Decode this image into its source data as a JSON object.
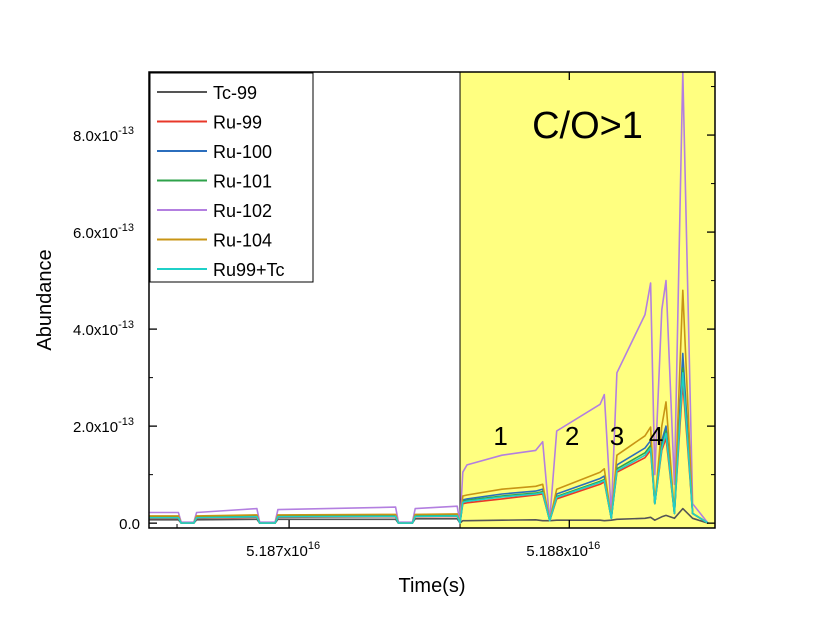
{
  "chart_data": {
    "type": "line",
    "xlabel": "Time(s)",
    "ylabel": "Abundance",
    "xlim": [
      51865000000000000,
      51885200000000000
    ],
    "ylim": [
      -1e-14,
      9.3e-13
    ],
    "x_ticks": [
      {
        "value": 51870000000000000,
        "mant": "5.187x10",
        "exp": "16"
      },
      {
        "value": 51880000000000000,
        "mant": "5.188x10",
        "exp": "16"
      }
    ],
    "y_ticks": [
      {
        "value": 0,
        "mant": "0.0",
        "exp": ""
      },
      {
        "value": 2e-13,
        "mant": "2.0x10",
        "exp": "-13"
      },
      {
        "value": 4e-13,
        "mant": "4.0x10",
        "exp": "-13"
      },
      {
        "value": 6e-13,
        "mant": "6.0x10",
        "exp": "-13"
      },
      {
        "value": 8e-13,
        "mant": "8.0x10",
        "exp": "-13"
      }
    ],
    "shaded_region": {
      "x_start": 51876100000000000,
      "x_end": 51885200000000000,
      "label": "C/O>1",
      "color": "#ffff80"
    },
    "annotations": [
      {
        "text": "1",
        "x": 51877550000000000,
        "y": 1.8e-13
      },
      {
        "text": "2",
        "x": 51880100000000000,
        "y": 1.8e-13
      },
      {
        "text": "3",
        "x": 51881700000000000,
        "y": 1.8e-13
      },
      {
        "text": "4",
        "x": 51883100000000000,
        "y": 1.8e-13
      }
    ],
    "legend_position": "top-left",
    "x_points": [
      51865000000000000,
      51866050000000000,
      51866150000000000,
      51866600000000000,
      51866700000000000,
      51868850000000000,
      51868950000000000,
      51869500000000000,
      51869600000000000,
      51873800000000000,
      51873900000000000,
      51874400000000000,
      51874500000000000,
      51876000000000000,
      51876100000000000,
      51876200000000000,
      51876350000000000,
      51877600000000000,
      51878800000000000,
      51879050000000000,
      51879300000000000,
      51879550000000000,
      51881100000000000,
      51881250000000000,
      51881500000000000,
      51881700000000000,
      51882700000000000,
      51882900000000000,
      51883050000000000,
      51883300000000000,
      51883450000000000,
      51883750000000000,
      51884050000000000,
      51884400000000000,
      51884950000000000
    ],
    "series": [
      {
        "name": "Tc-99",
        "color": "#555555",
        "values": [
          7e-15,
          7e-15,
          0,
          0,
          7e-15,
          8e-15,
          0,
          0,
          8e-15,
          8e-15,
          0,
          0,
          9e-15,
          9e-15,
          0,
          5e-15,
          5e-15,
          6e-15,
          7e-15,
          5e-15,
          5e-15,
          6e-15,
          6e-15,
          5e-15,
          6e-15,
          8e-15,
          1e-14,
          1.2e-14,
          6e-15,
          1.3e-14,
          1.6e-14,
          1e-14,
          3e-14,
          1e-14,
          0
        ]
      },
      {
        "name": "Ru-99",
        "color": "#e8382a",
        "values": [
          1e-14,
          1e-14,
          0,
          0,
          1e-14,
          1.2e-14,
          0,
          0,
          1.2e-14,
          1.3e-14,
          0,
          0,
          1.3e-14,
          1.4e-14,
          0,
          4e-14,
          4.2e-14,
          5e-14,
          5.8e-14,
          6e-14,
          5e-15,
          5e-14,
          8e-14,
          8.5e-14,
          1e-14,
          1.05e-13,
          1.35e-13,
          1.5e-13,
          4e-14,
          1.5e-13,
          1.75e-13,
          2e-14,
          2.9e-13,
          2e-14,
          0
        ]
      },
      {
        "name": "Ru-100",
        "color": "#2b6ebd",
        "values": [
          1.3e-14,
          1.3e-14,
          0,
          0,
          1.3e-14,
          1.5e-14,
          0,
          0,
          1.5e-14,
          1.6e-14,
          0,
          0,
          1.6e-14,
          1.7e-14,
          0,
          4.8e-14,
          5e-14,
          6e-14,
          6.6e-14,
          7e-14,
          5e-15,
          6e-14,
          9.2e-14,
          9.7e-14,
          1e-14,
          1.2e-13,
          1.55e-13,
          1.7e-13,
          4e-14,
          1.7e-13,
          2e-13,
          2e-14,
          3.5e-13,
          2e-14,
          0
        ]
      },
      {
        "name": "Ru-101",
        "color": "#2ea24a",
        "values": [
          1.2e-14,
          1.2e-14,
          0,
          0,
          1.2e-14,
          1.4e-14,
          0,
          0,
          1.4e-14,
          1.5e-14,
          0,
          0,
          1.5e-14,
          1.6e-14,
          0,
          4.5e-14,
          4.7e-14,
          5.6e-14,
          6.2e-14,
          6.5e-14,
          5e-15,
          5.5e-14,
          8.6e-14,
          9e-14,
          1e-14,
          1.12e-13,
          1.45e-13,
          1.6e-13,
          4e-14,
          1.6e-13,
          1.9e-13,
          2e-14,
          3.2e-13,
          2e-14,
          0
        ]
      },
      {
        "name": "Ru-102",
        "color": "#b37fe0",
        "values": [
          2.2e-14,
          2.2e-14,
          2e-15,
          2e-15,
          2.2e-14,
          3e-14,
          2e-15,
          2e-15,
          2.8e-14,
          3.3e-14,
          2e-15,
          2e-15,
          3e-14,
          3.5e-14,
          0,
          1.05e-13,
          1.2e-13,
          1.4e-13,
          1.5e-13,
          1.68e-13,
          5e-15,
          1.9e-13,
          2.45e-13,
          2.65e-13,
          2e-14,
          3.1e-13,
          4.3e-13,
          4.95e-13,
          1e-13,
          4.4e-13,
          5e-13,
          8e-14,
          9.3e-13,
          4e-14,
          0
        ]
      },
      {
        "name": "Ru-104",
        "color": "#c89515",
        "values": [
          1.5e-14,
          1.5e-14,
          0,
          0,
          1.5e-14,
          1.7e-14,
          0,
          0,
          1.7e-14,
          1.8e-14,
          0,
          0,
          1.8e-14,
          1.9e-14,
          0,
          5.6e-14,
          5.8e-14,
          7e-14,
          7.6e-14,
          8e-14,
          5e-15,
          7e-14,
          1.05e-13,
          1.12e-13,
          1e-14,
          1.4e-13,
          1.8e-13,
          1.98e-13,
          4e-14,
          2e-13,
          2.5e-13,
          2e-14,
          4.8e-13,
          2e-14,
          0
        ]
      },
      {
        "name": "Ru99+Tc",
        "color": "#1fd0c8",
        "values": [
          1.1e-14,
          1.1e-14,
          0,
          0,
          1.1e-14,
          1.3e-14,
          0,
          0,
          1.3e-14,
          1.4e-14,
          0,
          0,
          1.4e-14,
          1.5e-14,
          0,
          4.3e-14,
          4.5e-14,
          5.4e-14,
          6e-14,
          6.3e-14,
          5e-15,
          5.3e-14,
          8.4e-14,
          8.8e-14,
          1e-14,
          1.08e-13,
          1.4e-13,
          1.55e-13,
          4e-14,
          1.55e-13,
          1.85e-13,
          2e-14,
          3.1e-13,
          2e-14,
          0
        ]
      }
    ]
  }
}
